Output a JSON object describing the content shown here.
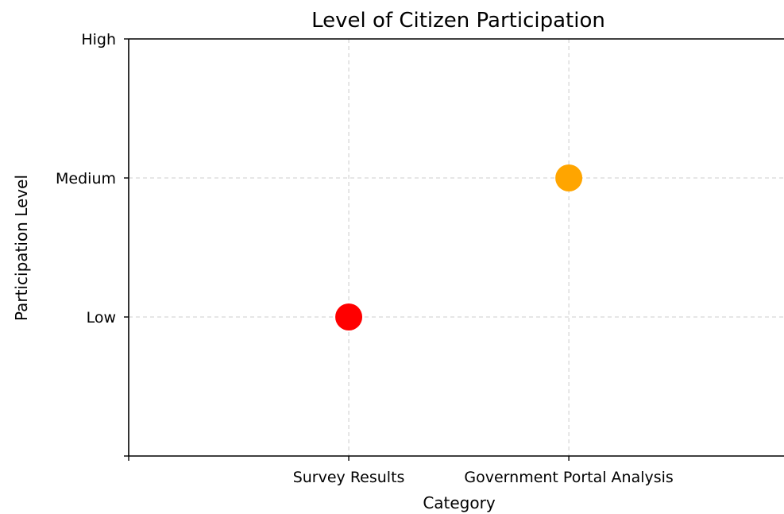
{
  "chart_data": {
    "type": "scatter",
    "title": "Level of Citizen Participation",
    "xlabel": "Category",
    "ylabel": "Participation Level",
    "x_ticks": [
      "",
      "Survey Results",
      "Government Portal Analysis"
    ],
    "y_ticks": [
      "",
      "Low",
      "Medium",
      "High"
    ],
    "xlim": [
      0,
      3
    ],
    "ylim": [
      0,
      3
    ],
    "grid": true,
    "points": [
      {
        "category": "Survey Results",
        "x": 1,
        "y": 1,
        "level": "Low",
        "color": "#ff0000"
      },
      {
        "category": "Government Portal Analysis",
        "x": 2,
        "y": 2,
        "level": "Medium",
        "color": "#ffa500"
      }
    ]
  }
}
